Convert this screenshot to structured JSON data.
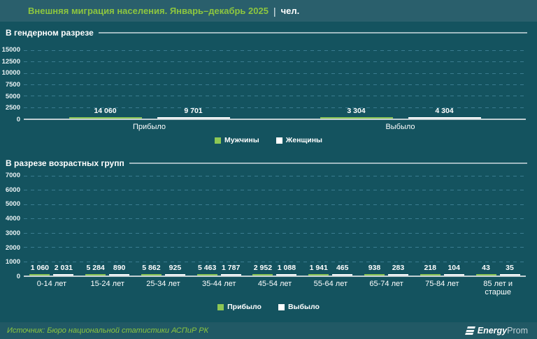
{
  "header": {
    "title": "Внешняя миграция населения. Январь–декабрь 2025",
    "separator": "|",
    "unit": "чел."
  },
  "colors": {
    "background": "#14535F",
    "header_bg": "#2A5F6C",
    "footer_bg": "#215965",
    "green": "#8DC754",
    "white": "#FFFFFF",
    "gridline": "#3A7C90",
    "axis_line": "#C2CFD3",
    "title_green": "#8DC63F"
  },
  "chart_data": [
    {
      "type": "bar",
      "title": "В гендерном разрезе",
      "categories": [
        "Прибыло",
        "Выбыло"
      ],
      "series": [
        {
          "name": "Мужчины",
          "color_key": "green",
          "values": [
            14060,
            3304
          ],
          "labels": [
            "14 060",
            "3 304"
          ]
        },
        {
          "name": "Женщины",
          "color_key": "white",
          "values": [
            9701,
            4304
          ],
          "labels": [
            "9 701",
            "4 304"
          ]
        }
      ],
      "ylim": [
        0,
        15000
      ],
      "yticks": [
        "15000",
        "12500",
        "10000",
        "7500",
        "5000",
        "2500",
        "0"
      ],
      "grid": true,
      "legend_position": "bottom"
    },
    {
      "type": "bar",
      "title": "В разрезе возрастных групп",
      "categories": [
        "0-14 лет",
        "15-24 лет",
        "25-34 лет",
        "35-44 лет",
        "45-54 лет",
        "55-64 лет",
        "65-74 лет",
        "75-84 лет",
        "85 лет и старше"
      ],
      "series": [
        {
          "name": "Прибыло",
          "color_key": "green",
          "values": [
            1060,
            5284,
            5862,
            5463,
            2952,
            1941,
            938,
            218,
            43
          ],
          "labels": [
            "1 060",
            "5 284",
            "5 862",
            "5 463",
            "2 952",
            "1 941",
            "938",
            "218",
            "43"
          ]
        },
        {
          "name": "Выбыло",
          "color_key": "white",
          "values": [
            2031,
            890,
            925,
            1787,
            1088,
            465,
            283,
            104,
            35
          ],
          "labels": [
            "2 031",
            "890",
            "925",
            "1 787",
            "1 088",
            "465",
            "283",
            "104",
            "35"
          ]
        }
      ],
      "ylim": [
        0,
        7000
      ],
      "yticks": [
        "7000",
        "6000",
        "5000",
        "4000",
        "3000",
        "2000",
        "1000",
        "0"
      ],
      "grid": true,
      "legend_position": "bottom"
    }
  ],
  "footer": {
    "source": "Источник: Бюро национальной статистики АСПиР РК",
    "logo": {
      "bold": "Energy",
      "regular": "Prom"
    }
  }
}
